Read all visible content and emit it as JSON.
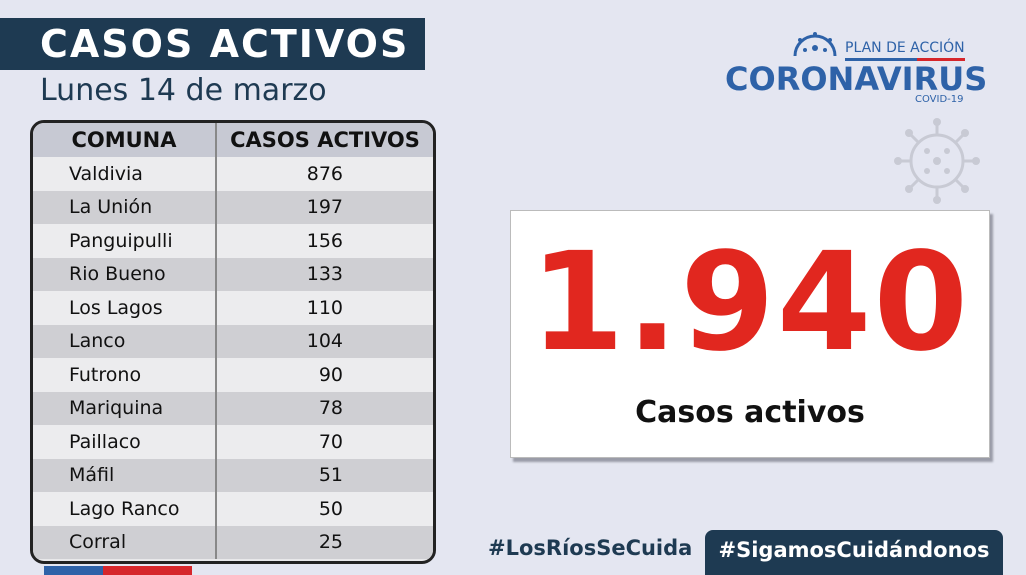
{
  "header": {
    "title": "CASOS ACTIVOS",
    "date": "Lunes 14 de marzo"
  },
  "logo": {
    "plan": "PLAN DE ACCIÓN",
    "main": "CORONAVIRUS",
    "sub": "COVID-19"
  },
  "table": {
    "headers": [
      "COMUNA",
      "CASOS ACTIVOS"
    ],
    "rows": [
      {
        "comuna": "Valdivia",
        "casos": "876"
      },
      {
        "comuna": "La Unión",
        "casos": "197"
      },
      {
        "comuna": "Panguipulli",
        "casos": "156"
      },
      {
        "comuna": "Rio Bueno",
        "casos": "133"
      },
      {
        "comuna": "Los Lagos",
        "casos": "110"
      },
      {
        "comuna": "Lanco",
        "casos": "104"
      },
      {
        "comuna": "Futrono",
        "casos": "90"
      },
      {
        "comuna": "Mariquina",
        "casos": "78"
      },
      {
        "comuna": "Paillaco",
        "casos": "70"
      },
      {
        "comuna": "Máfil",
        "casos": "51"
      },
      {
        "comuna": "Lago Ranco",
        "casos": "50"
      },
      {
        "comuna": "Corral",
        "casos": "25"
      }
    ]
  },
  "total": {
    "value": "1.940",
    "label": "Casos activos"
  },
  "footer": {
    "hashtag1": "#LosRíosSeCuida",
    "hashtag2": "#SigamosCuidándonos"
  },
  "colors": {
    "navy": "#1e3a52",
    "red": "#e1271f",
    "blue": "#2e62a8",
    "background": "#e4e6f1"
  },
  "icons": [
    "coronavirus-logo-icon",
    "virus-icon"
  ]
}
